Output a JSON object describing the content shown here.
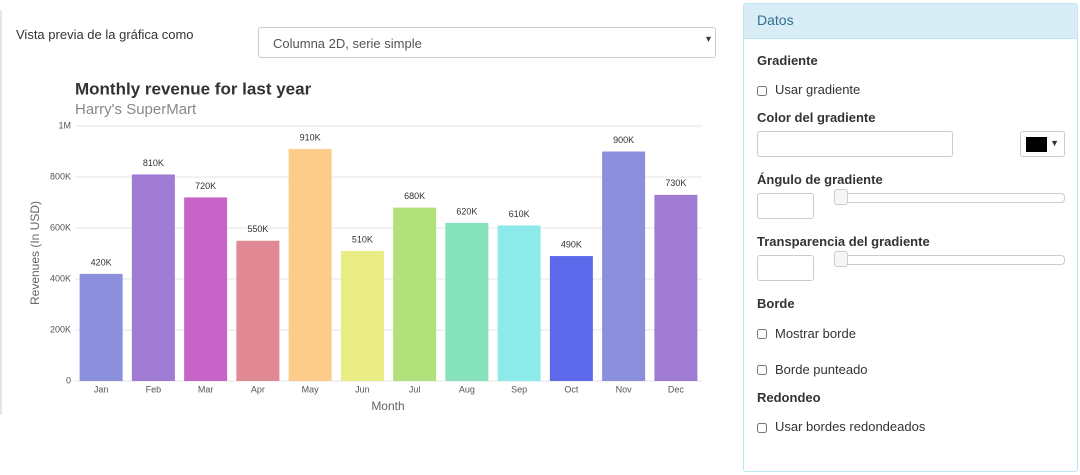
{
  "preview_label": "Vista previa de la gráfica como",
  "chart_select": "Columna 2D, serie simple",
  "chart_data": {
    "type": "bar",
    "title": "Monthly revenue for last year",
    "subtitle": "Harry's SuperMart",
    "x_label": "Month",
    "y_label": "Revenues (In USD)",
    "categories": [
      "Jan",
      "Feb",
      "Mar",
      "Apr",
      "May",
      "Jun",
      "Jul",
      "Aug",
      "Sep",
      "Oct",
      "Nov",
      "Dec"
    ],
    "values": [
      420000,
      810000,
      720000,
      550000,
      910000,
      510000,
      680000,
      620000,
      610000,
      490000,
      900000,
      730000
    ],
    "value_labels": [
      "420K",
      "810K",
      "720K",
      "550K",
      "910K",
      "510K",
      "680K",
      "620K",
      "610K",
      "490K",
      "900K",
      "730K"
    ],
    "colors": [
      "#8b8fdc",
      "#a07bd4",
      "#c764c8",
      "#e08994",
      "#fdcc8a",
      "#eaec84",
      "#b2e07a",
      "#86e2bc",
      "#8ceaea",
      "#5b69ea",
      "#8b8fdc",
      "#a07bd4"
    ],
    "ylim": [
      0,
      1000000
    ],
    "yticks": [
      0,
      {
        "value": 200000,
        "label": "200K"
      },
      {
        "value": 400000,
        "label": "400K"
      },
      {
        "value": 600000,
        "label": "600K"
      },
      {
        "value": 800000,
        "label": "800K"
      },
      {
        "value": 1000000,
        "label": "1M"
      }
    ],
    "grid": true
  },
  "panel": {
    "title": "Datos",
    "gradient_heading": "Gradiente",
    "use_gradient": "Usar gradiente",
    "gradient_color": "Color del gradiente",
    "gradient_angle": "Ángulo de gradiente",
    "gradient_transparency": "Transparencia del gradiente",
    "border_heading": "Borde",
    "show_border": "Mostrar borde",
    "dotted_border": "Borde punteado",
    "rounding_heading": "Redondeo",
    "rounded_borders": "Usar bordes redondeados"
  }
}
